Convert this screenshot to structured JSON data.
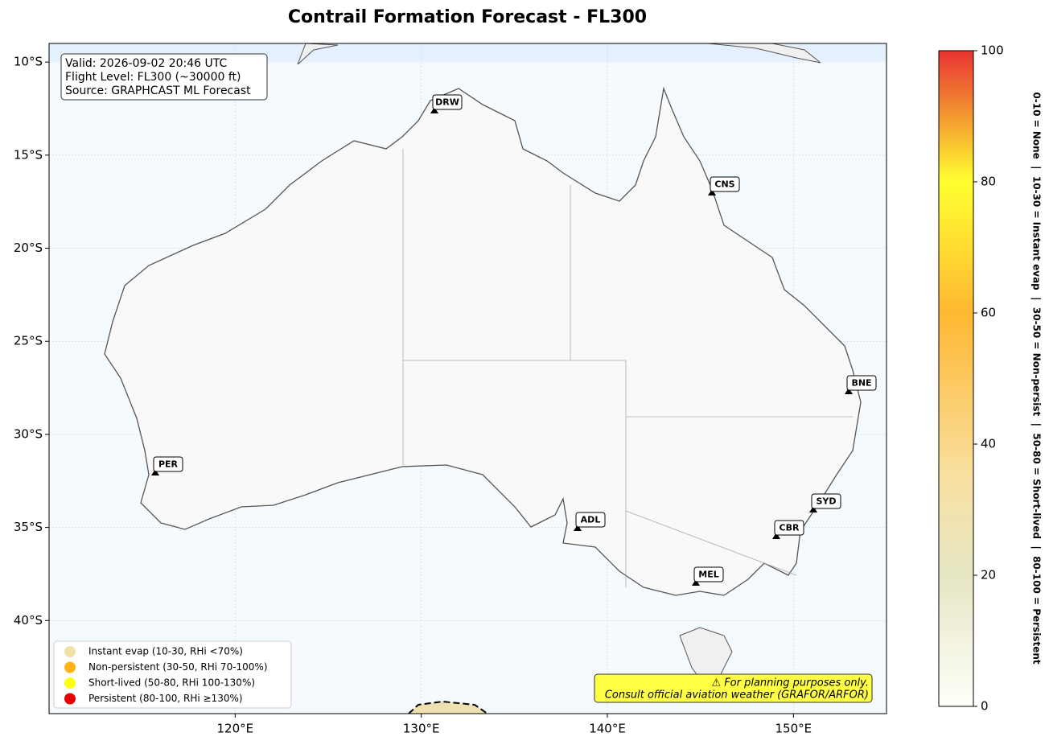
{
  "title": "Contrail Formation Forecast - FL300",
  "map": {
    "xlim": [
      110,
      155
    ],
    "ylim": [
      -45,
      -9
    ],
    "grid": true,
    "xticks": [
      {
        "value": 120,
        "label": "120°E"
      },
      {
        "value": 130,
        "label": "130°E"
      },
      {
        "value": 140,
        "label": "140°E"
      },
      {
        "value": 150,
        "label": "150°E"
      }
    ],
    "yticks": [
      {
        "value": -10,
        "label": "10°S"
      },
      {
        "value": -15,
        "label": "15°S"
      },
      {
        "value": -20,
        "label": "20°S"
      },
      {
        "value": -25,
        "label": "25°S"
      },
      {
        "value": -30,
        "label": "30°S"
      },
      {
        "value": -35,
        "label": "35°S"
      },
      {
        "value": -40,
        "label": "40°S"
      }
    ]
  },
  "info_box": [
    "Valid: 2026-09-02 20:46 UTC",
    "Flight Level: FL300 (~30000 ft)",
    "Source: GRAPHCAST ML Forecast"
  ],
  "airports": [
    "DRW",
    "CNS",
    "BNE",
    "PER",
    "ADL",
    "SYD",
    "CBR",
    "MEL"
  ],
  "legend": [
    {
      "label": "Instant evap (10-30, RHi <70%)",
      "color": "#f0e2a4"
    },
    {
      "label": "Non-persistent (30-50, RHi 70-100%)",
      "color": "#ffb314"
    },
    {
      "label": "Short-lived (50-80, RHi 100-130%)",
      "color": "#ffff14"
    },
    {
      "label": "Persistent (80-100, RHi ≥130%)",
      "color": "#e60000"
    }
  ],
  "disclaimer": [
    "⚠ For planning purposes only.",
    "Consult official aviation weather (GRAFOR/ARFOR)"
  ],
  "colorbar": {
    "lim": [
      0,
      100
    ],
    "ticks": [
      0,
      20,
      40,
      60,
      80,
      100
    ],
    "label": "0-10 = None  |  10-30 = Instant evap  |  30-50 = Non-persist  |  50-80 = Short-lived  |  80-100 = Persistent"
  }
}
